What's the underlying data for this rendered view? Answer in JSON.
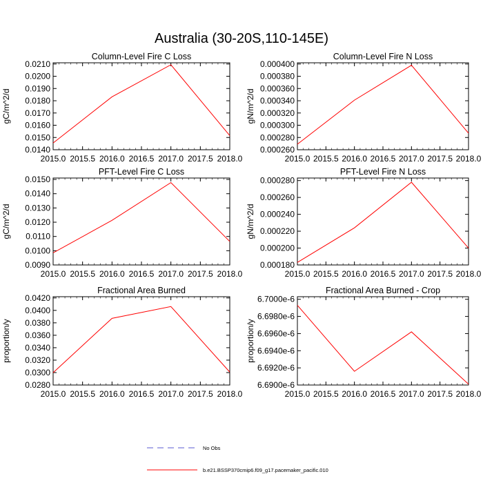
{
  "figure_title": "Australia (30-20S,110-145E)",
  "colors": {
    "series": "#ff0000",
    "obs": "#5a5ad2",
    "axes": "#000000"
  },
  "legend": {
    "entries": [
      {
        "label": "No Obs",
        "style": "dashed",
        "color": "#5a5ad2"
      },
      {
        "label": "b.e21.BSSP370cmip6.f09_g17.pacemaker_pacific.010",
        "style": "solid",
        "color": "#ff0000"
      }
    ]
  },
  "chart_data": [
    {
      "type": "line",
      "title": "Column-Level Fire C Loss",
      "xlabel": "",
      "ylabel": "gC/m^2/d",
      "x": [
        2015,
        2016,
        2017,
        2018
      ],
      "series": [
        {
          "values": [
            0.01455,
            0.01832,
            0.02094,
            0.01515
          ]
        }
      ],
      "xlim": [
        2015,
        2018
      ],
      "ylim": [
        0.014,
        0.0211
      ],
      "xticks": [
        "2015.0",
        "2015.5",
        "2016.0",
        "2016.5",
        "2017.0",
        "2017.5",
        "2018.0"
      ],
      "xtick_values": [
        2015,
        2015.5,
        2016,
        2016.5,
        2017,
        2017.5,
        2018
      ],
      "yticks": [
        "0.0140",
        "0.0150",
        "0.0160",
        "0.0170",
        "0.0180",
        "0.0190",
        "0.0200",
        "0.0210"
      ],
      "ytick_values": [
        0.014,
        0.015,
        0.016,
        0.017,
        0.018,
        0.019,
        0.02,
        0.021
      ],
      "grid": false
    },
    {
      "type": "line",
      "title": "Column-Level Fire N Loss",
      "xlabel": "",
      "ylabel": "gN/m^2/d",
      "x": [
        2015,
        2016,
        2017,
        2018
      ],
      "series": [
        {
          "values": [
            0.000269,
            0.000341,
            0.000398,
            0.000287
          ]
        }
      ],
      "xlim": [
        2015,
        2018
      ],
      "ylim": [
        0.00026,
        0.000402
      ],
      "xticks": [
        "2015.0",
        "2015.5",
        "2016.0",
        "2016.5",
        "2017.0",
        "2017.5",
        "2018.0"
      ],
      "xtick_values": [
        2015,
        2015.5,
        2016,
        2016.5,
        2017,
        2017.5,
        2018
      ],
      "yticks": [
        "0.000260",
        "0.000280",
        "0.000300",
        "0.000320",
        "0.000340",
        "0.000360",
        "0.000380",
        "0.000400"
      ],
      "ytick_values": [
        0.00026,
        0.00028,
        0.0003,
        0.00032,
        0.00034,
        0.00036,
        0.00038,
        0.0004
      ],
      "grid": false
    },
    {
      "type": "line",
      "title": "PFT-Level Fire C Loss",
      "xlabel": "",
      "ylabel": "gC/m^2/d",
      "x": [
        2015,
        2016,
        2017,
        2018
      ],
      "series": [
        {
          "values": [
            0.00985,
            0.01213,
            0.01478,
            0.01065
          ]
        }
      ],
      "xlim": [
        2015,
        2018
      ],
      "ylim": [
        0.009,
        0.0151
      ],
      "xticks": [
        "2015.0",
        "2015.5",
        "2016.0",
        "2016.5",
        "2017.0",
        "2017.5",
        "2018.0"
      ],
      "xtick_values": [
        2015,
        2015.5,
        2016,
        2016.5,
        2017,
        2017.5,
        2018
      ],
      "yticks": [
        "0.0090",
        "0.0100",
        "0.0110",
        "0.0120",
        "0.0130",
        "0.0140",
        "0.0150"
      ],
      "ytick_values": [
        0.009,
        0.01,
        0.011,
        0.012,
        0.013,
        0.014,
        0.015
      ],
      "grid": false
    },
    {
      "type": "line",
      "title": "PFT-Level Fire N Loss",
      "xlabel": "",
      "ylabel": "gN/m^2/d",
      "x": [
        2015,
        2016,
        2017,
        2018
      ],
      "series": [
        {
          "values": [
            0.000183,
            0.000224,
            0.000278,
            0.0002
          ]
        }
      ],
      "xlim": [
        2015,
        2018
      ],
      "ylim": [
        0.00018,
        0.000283
      ],
      "xticks": [
        "2015.0",
        "2015.5",
        "2016.0",
        "2016.5",
        "2017.0",
        "2017.5",
        "2018.0"
      ],
      "xtick_values": [
        2015,
        2015.5,
        2016,
        2016.5,
        2017,
        2017.5,
        2018
      ],
      "yticks": [
        "0.000180",
        "0.000200",
        "0.000220",
        "0.000240",
        "0.000260",
        "0.000280"
      ],
      "ytick_values": [
        0.00018,
        0.0002,
        0.00022,
        0.00024,
        0.00026,
        0.00028
      ],
      "grid": false
    },
    {
      "type": "line",
      "title": "Fractional Area Burned",
      "xlabel": "",
      "ylabel": "proportion/y",
      "x": [
        2015,
        2016,
        2017,
        2018
      ],
      "series": [
        {
          "values": [
            0.02998,
            0.03872,
            0.04062,
            0.03008
          ]
        }
      ],
      "xlim": [
        2015,
        2018
      ],
      "ylim": [
        0.028,
        0.0422
      ],
      "xticks": [
        "2015.0",
        "2015.5",
        "2016.0",
        "2016.5",
        "2017.0",
        "2017.5",
        "2018.0"
      ],
      "xtick_values": [
        2015,
        2015.5,
        2016,
        2016.5,
        2017,
        2017.5,
        2018
      ],
      "yticks": [
        "0.0280",
        "0.0300",
        "0.0320",
        "0.0340",
        "0.0360",
        "0.0380",
        "0.0400",
        "0.0420"
      ],
      "ytick_values": [
        0.028,
        0.03,
        0.032,
        0.034,
        0.036,
        0.038,
        0.04,
        0.042
      ],
      "grid": false
    },
    {
      "type": "line",
      "title": "Fractional Area Burned - Crop",
      "xlabel": "",
      "ylabel": "proportion/y",
      "x": [
        2015,
        2016,
        2017,
        2018
      ],
      "series": [
        {
          "values": [
            6.6993e-06,
            6.6916e-06,
            6.6962e-06,
            6.6901e-06
          ]
        }
      ],
      "xlim": [
        2015,
        2018
      ],
      "ylim": [
        6.69e-06,
        6.7003e-06
      ],
      "xticks": [
        "2015.0",
        "2015.5",
        "2016.0",
        "2016.5",
        "2017.0",
        "2017.5",
        "2018.0"
      ],
      "xtick_values": [
        2015,
        2015.5,
        2016,
        2016.5,
        2017,
        2017.5,
        2018
      ],
      "yticks": [
        "6.6900e-6",
        "6.6920e-6",
        "6.6940e-6",
        "6.6960e-6",
        "6.6980e-6",
        "6.7000e-6"
      ],
      "ytick_values": [
        6.69e-06,
        6.692e-06,
        6.694e-06,
        6.696e-06,
        6.698e-06,
        6.7e-06
      ],
      "grid": false
    }
  ]
}
